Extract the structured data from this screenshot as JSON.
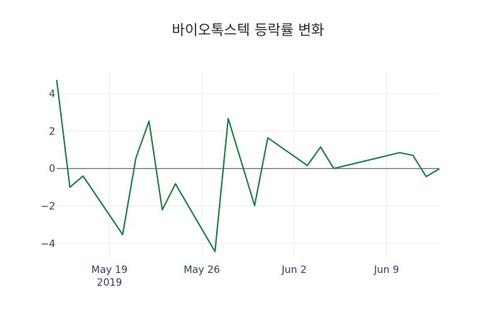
{
  "chart_data": {
    "type": "line",
    "title": "바이오톡스텍 등락률 변화",
    "xlabel": "",
    "ylabel": "",
    "x": [
      "2019-05-15",
      "2019-05-16",
      "2019-05-17",
      "2019-05-20",
      "2019-05-21",
      "2019-05-22",
      "2019-05-23",
      "2019-05-24",
      "2019-05-27",
      "2019-05-28",
      "2019-05-30",
      "2019-05-31",
      "2019-06-03",
      "2019-06-04",
      "2019-06-05",
      "2019-06-10",
      "2019-06-11",
      "2019-06-12",
      "2019-06-13"
    ],
    "series": [
      {
        "name": "등락률",
        "color": "#1a7f3f",
        "values": [
          4.73,
          -1.0,
          -0.4,
          -3.53,
          0.55,
          2.53,
          -2.21,
          -0.82,
          -4.44,
          2.67,
          -1.98,
          1.64,
          0.16,
          1.15,
          0.0,
          0.85,
          0.7,
          -0.43,
          -0.02
        ]
      }
    ],
    "x_ticks": [
      {
        "date": "2019-05-19",
        "label": "May 19",
        "sublabel": "2019"
      },
      {
        "date": "2019-05-26",
        "label": "May 26",
        "sublabel": ""
      },
      {
        "date": "2019-06-02",
        "label": "Jun 2",
        "sublabel": ""
      },
      {
        "date": "2019-06-09",
        "label": "Jun 9",
        "sublabel": ""
      }
    ],
    "y_ticks": [
      4,
      2,
      0,
      -2,
      -4
    ],
    "y_tick_labels": [
      "4",
      "2",
      "0",
      "−2",
      "−4"
    ],
    "xlim": [
      "2019-05-15",
      "2019-06-13"
    ],
    "ylim": [
      -5.0,
      5.2
    ],
    "grid": true,
    "zeroline": true,
    "legend": false
  }
}
